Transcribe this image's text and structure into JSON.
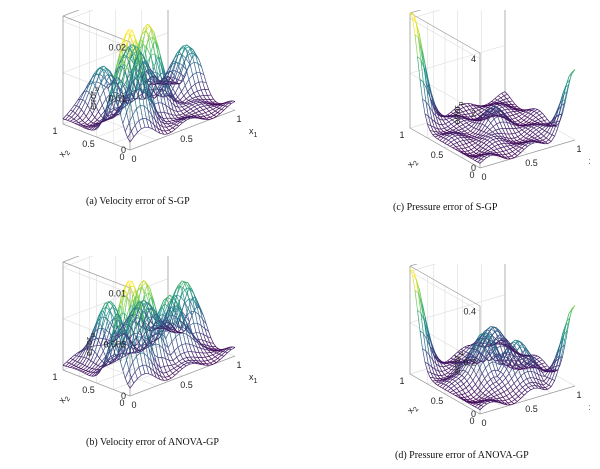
{
  "chart_data": [
    {
      "type": "surface",
      "caption": "(a)  Velocity error of S-GP",
      "zlabel": "error",
      "zlabel_sub": "u",
      "xlabel": "x",
      "xlabel_sub": "1",
      "ylabel": "x",
      "ylabel_sub": "2",
      "zlim": [
        0,
        0.02
      ],
      "zticks": [
        "0",
        "0.01",
        "0.02"
      ],
      "xticks": [
        "0",
        "0.5",
        "1"
      ],
      "yticks": [
        "0",
        "0.5",
        "1"
      ],
      "grid": true,
      "colormap": [
        "#440154",
        "#3b528b",
        "#21918c",
        "#5ec962",
        "#fde725"
      ],
      "z_peaks": [
        {
          "x1": 0.15,
          "x2": 0.25,
          "z": 0.02
        },
        {
          "x1": 0.45,
          "x2": 0.45,
          "z": 0.017
        },
        {
          "x1": 0.9,
          "x2": 0.6,
          "z": 0.009
        },
        {
          "x1": 0.6,
          "x2": 0.9,
          "z": 0.01
        },
        {
          "x1": 0.3,
          "x2": 0.9,
          "z": 0.008
        }
      ]
    },
    {
      "type": "surface",
      "caption": "(b)  Velocity error of ANOVA-GP",
      "zlabel": "error",
      "zlabel_sub": "u",
      "xlabel": "x",
      "xlabel_sub": "1",
      "ylabel": "x",
      "ylabel_sub": "2",
      "zlim": [
        0,
        0.01
      ],
      "zticks": [
        "0",
        "0.005",
        "0.01"
      ],
      "xticks": [
        "0",
        "0.5",
        "1"
      ],
      "yticks": [
        "0",
        "0.5",
        "1"
      ],
      "grid": true,
      "colormap": [
        "#440154",
        "#3b528b",
        "#21918c",
        "#5ec962",
        "#fde725"
      ],
      "z_peaks": [
        {
          "x1": 0.15,
          "x2": 0.25,
          "z": 0.0095
        },
        {
          "x1": 0.35,
          "x2": 0.35,
          "z": 0.008
        },
        {
          "x1": 0.6,
          "x2": 0.35,
          "z": 0.006
        },
        {
          "x1": 0.85,
          "x2": 0.55,
          "z": 0.006
        },
        {
          "x1": 0.3,
          "x2": 0.8,
          "z": 0.005
        },
        {
          "x1": 0.65,
          "x2": 0.85,
          "z": 0.004
        }
      ]
    },
    {
      "type": "surface",
      "caption": "(c)  Pressure error of S-GP",
      "zlabel": "error",
      "zlabel_sub": "p",
      "xlabel": "x",
      "xlabel_sub": "1",
      "ylabel": "x",
      "ylabel_sub": "2",
      "zlim": [
        0,
        4.5
      ],
      "zticks": [
        "0",
        "2",
        "4"
      ],
      "xticks": [
        "0",
        "0.5",
        "1"
      ],
      "yticks": [
        "0",
        "0.5",
        "1"
      ],
      "grid": true,
      "colormap": [
        "#440154",
        "#3b528b",
        "#21918c",
        "#5ec962",
        "#fde725"
      ],
      "z_peaks": [
        {
          "x1": 0.0,
          "x2": 1.0,
          "z": 4.4
        },
        {
          "x1": 1.0,
          "x2": 0.0,
          "z": 2.4
        },
        {
          "x1": 0.5,
          "x2": 0.5,
          "z": 0.7
        }
      ]
    },
    {
      "type": "surface",
      "caption": "(d)  Pressure error of ANOVA-GP",
      "zlabel": "error",
      "zlabel_sub": "p",
      "xlabel": "x",
      "xlabel_sub": "1",
      "ylabel": "x",
      "ylabel_sub": "2",
      "zlim": [
        0,
        0.45
      ],
      "zticks": [
        "0",
        "0.2",
        "0.4"
      ],
      "xticks": [
        "0",
        "0.5",
        "1"
      ],
      "yticks": [
        "0",
        "0.5",
        "1"
      ],
      "grid": true,
      "colormap": [
        "#440154",
        "#3b528b",
        "#21918c",
        "#5ec962",
        "#fde725"
      ],
      "z_peaks": [
        {
          "x1": 0.0,
          "x2": 1.0,
          "z": 0.42
        },
        {
          "x1": 1.0,
          "x2": 0.0,
          "z": 0.3
        },
        {
          "x1": 0.4,
          "x2": 0.5,
          "z": 0.2
        },
        {
          "x1": 0.6,
          "x2": 0.3,
          "z": 0.18
        },
        {
          "x1": 0.7,
          "x2": 0.8,
          "z": 0.12
        }
      ]
    }
  ]
}
